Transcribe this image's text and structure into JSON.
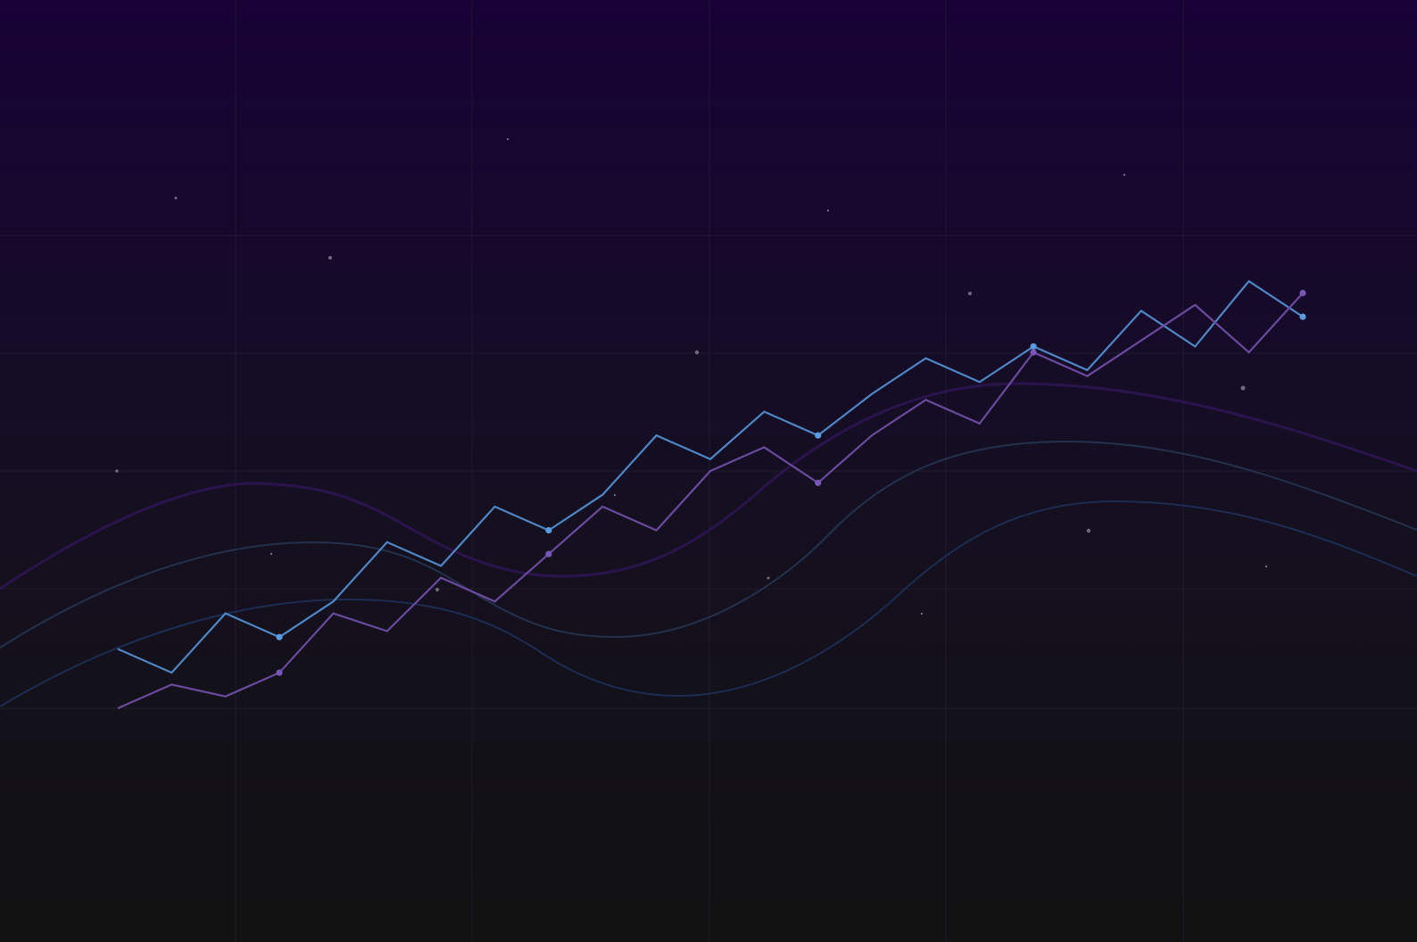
{
  "chart_data": {
    "type": "line",
    "title": "",
    "xlabel": "",
    "ylabel": "",
    "grid": true,
    "legend": "none",
    "x_range": [
      0,
      12
    ],
    "y_range": [
      0,
      6
    ],
    "colors": {
      "background_top": "#180236",
      "background_bottom": "#121212",
      "grid_line": "#2a2238",
      "series_blue": "#4f86c6",
      "series_purple": "#6a4a9e",
      "marker_blue": "#5b9be0",
      "marker_purple": "#7a55b8",
      "wave_purple": "#2e1552",
      "wave_slate": "#243450",
      "wave_navy": "#1e2e55",
      "star": "#8a8296"
    },
    "series": [
      {
        "key": "blue",
        "x": [
          0,
          0.5,
          1,
          1.5,
          2,
          2.5,
          3,
          3.5,
          4,
          4.5,
          5,
          5.5,
          6,
          6.5,
          7,
          7.5,
          8,
          8.5,
          9,
          9.5,
          10,
          10.5,
          11
        ],
        "values": [
          0.5,
          0.3,
          0.8,
          0.6,
          0.9,
          1.4,
          1.2,
          1.7,
          1.5,
          1.8,
          2.3,
          2.1,
          2.5,
          2.3,
          2.65,
          2.95,
          2.75,
          3.05,
          2.85,
          3.35,
          3.05,
          3.6,
          3.3
        ],
        "markers_at": [
          3,
          8,
          13,
          17,
          22
        ]
      },
      {
        "key": "purple",
        "x": [
          0,
          0.5,
          1,
          1.5,
          2,
          2.5,
          3,
          3.5,
          4,
          4.5,
          5,
          5.5,
          6,
          6.5,
          7,
          7.5,
          8,
          8.5,
          9,
          9.5,
          10,
          10.5,
          11
        ],
        "values": [
          0.0,
          0.2,
          0.1,
          0.3,
          0.8,
          0.65,
          1.1,
          0.9,
          1.3,
          1.7,
          1.5,
          2.0,
          2.2,
          1.9,
          2.3,
          2.6,
          2.4,
          3.0,
          2.8,
          3.1,
          3.4,
          3.0,
          3.5
        ],
        "markers_at": [
          3,
          8,
          13,
          17,
          22
        ]
      }
    ]
  }
}
